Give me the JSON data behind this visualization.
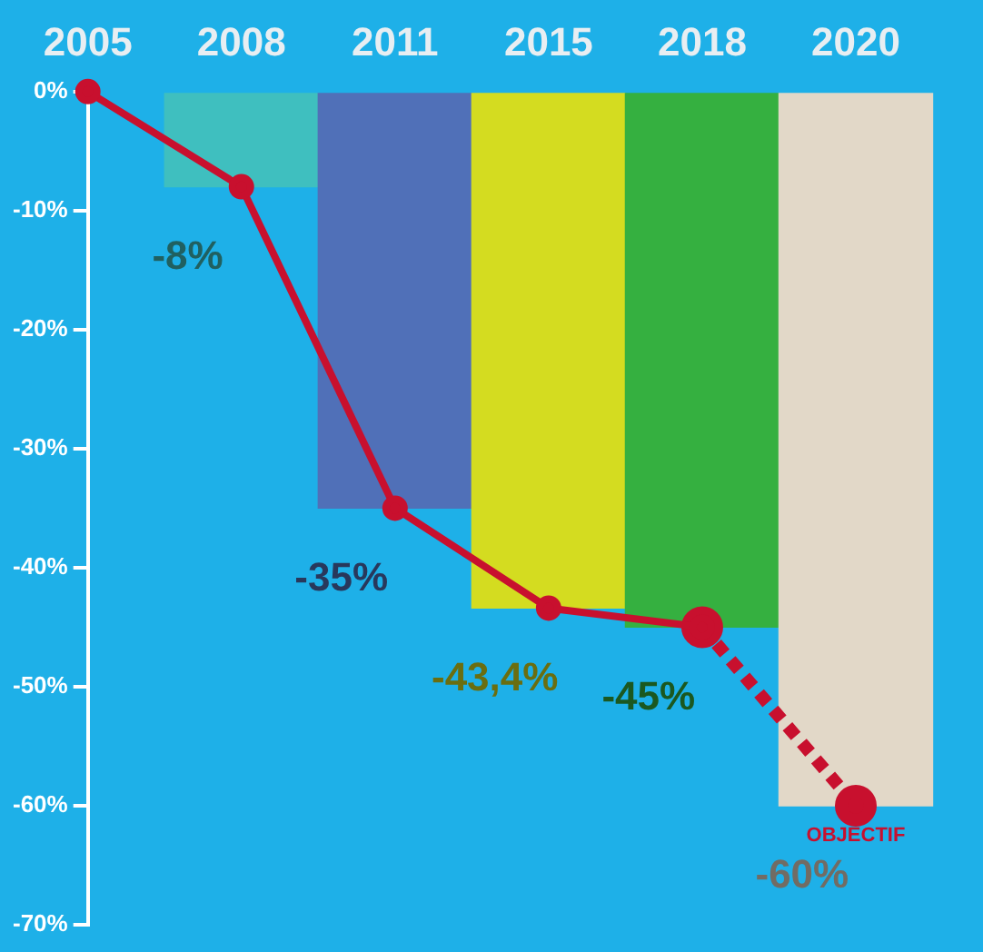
{
  "chart_data": {
    "type": "bar",
    "categories": [
      "2005",
      "2008",
      "2011",
      "2015",
      "2018",
      "2020"
    ],
    "series": [
      {
        "colors": [
          null,
          "#3fbfbf",
          "#5070b8",
          "#d4dc20",
          "#35b040",
          "#e2d8c8"
        ],
        "values": [
          null,
          -8,
          -35,
          -43.4,
          -45,
          -60
        ],
        "value_labels": [
          null,
          "-8%",
          "-35%",
          "-43,4%",
          "-45%",
          "-60%"
        ]
      },
      {
        "type": "line",
        "color": "#c8102e",
        "values": [
          0,
          -8,
          -35,
          -43.4,
          -45,
          null
        ],
        "line_style": "solid",
        "marker": "circle"
      },
      {
        "type": "line",
        "color": "#c8102e",
        "values": [
          null,
          null,
          null,
          null,
          -45,
          -60
        ],
        "line_style": "dashed",
        "marker": "circle"
      }
    ],
    "ylim": [
      -70,
      0
    ],
    "yticks": [
      {
        "value": 0,
        "label": "0%"
      },
      {
        "value": -10,
        "label": "-10%"
      },
      {
        "value": -20,
        "label": "-20%"
      },
      {
        "value": -30,
        "label": "-30%"
      },
      {
        "value": -40,
        "label": "-40%"
      },
      {
        "value": -50,
        "label": "-50%"
      },
      {
        "value": -60,
        "label": "-60%"
      },
      {
        "value": -70,
        "label": "-70%"
      }
    ],
    "annotations": [
      {
        "text": "OBJECTIF",
        "x": "2020",
        "y": -60
      }
    ],
    "grid": false,
    "legend": false
  }
}
